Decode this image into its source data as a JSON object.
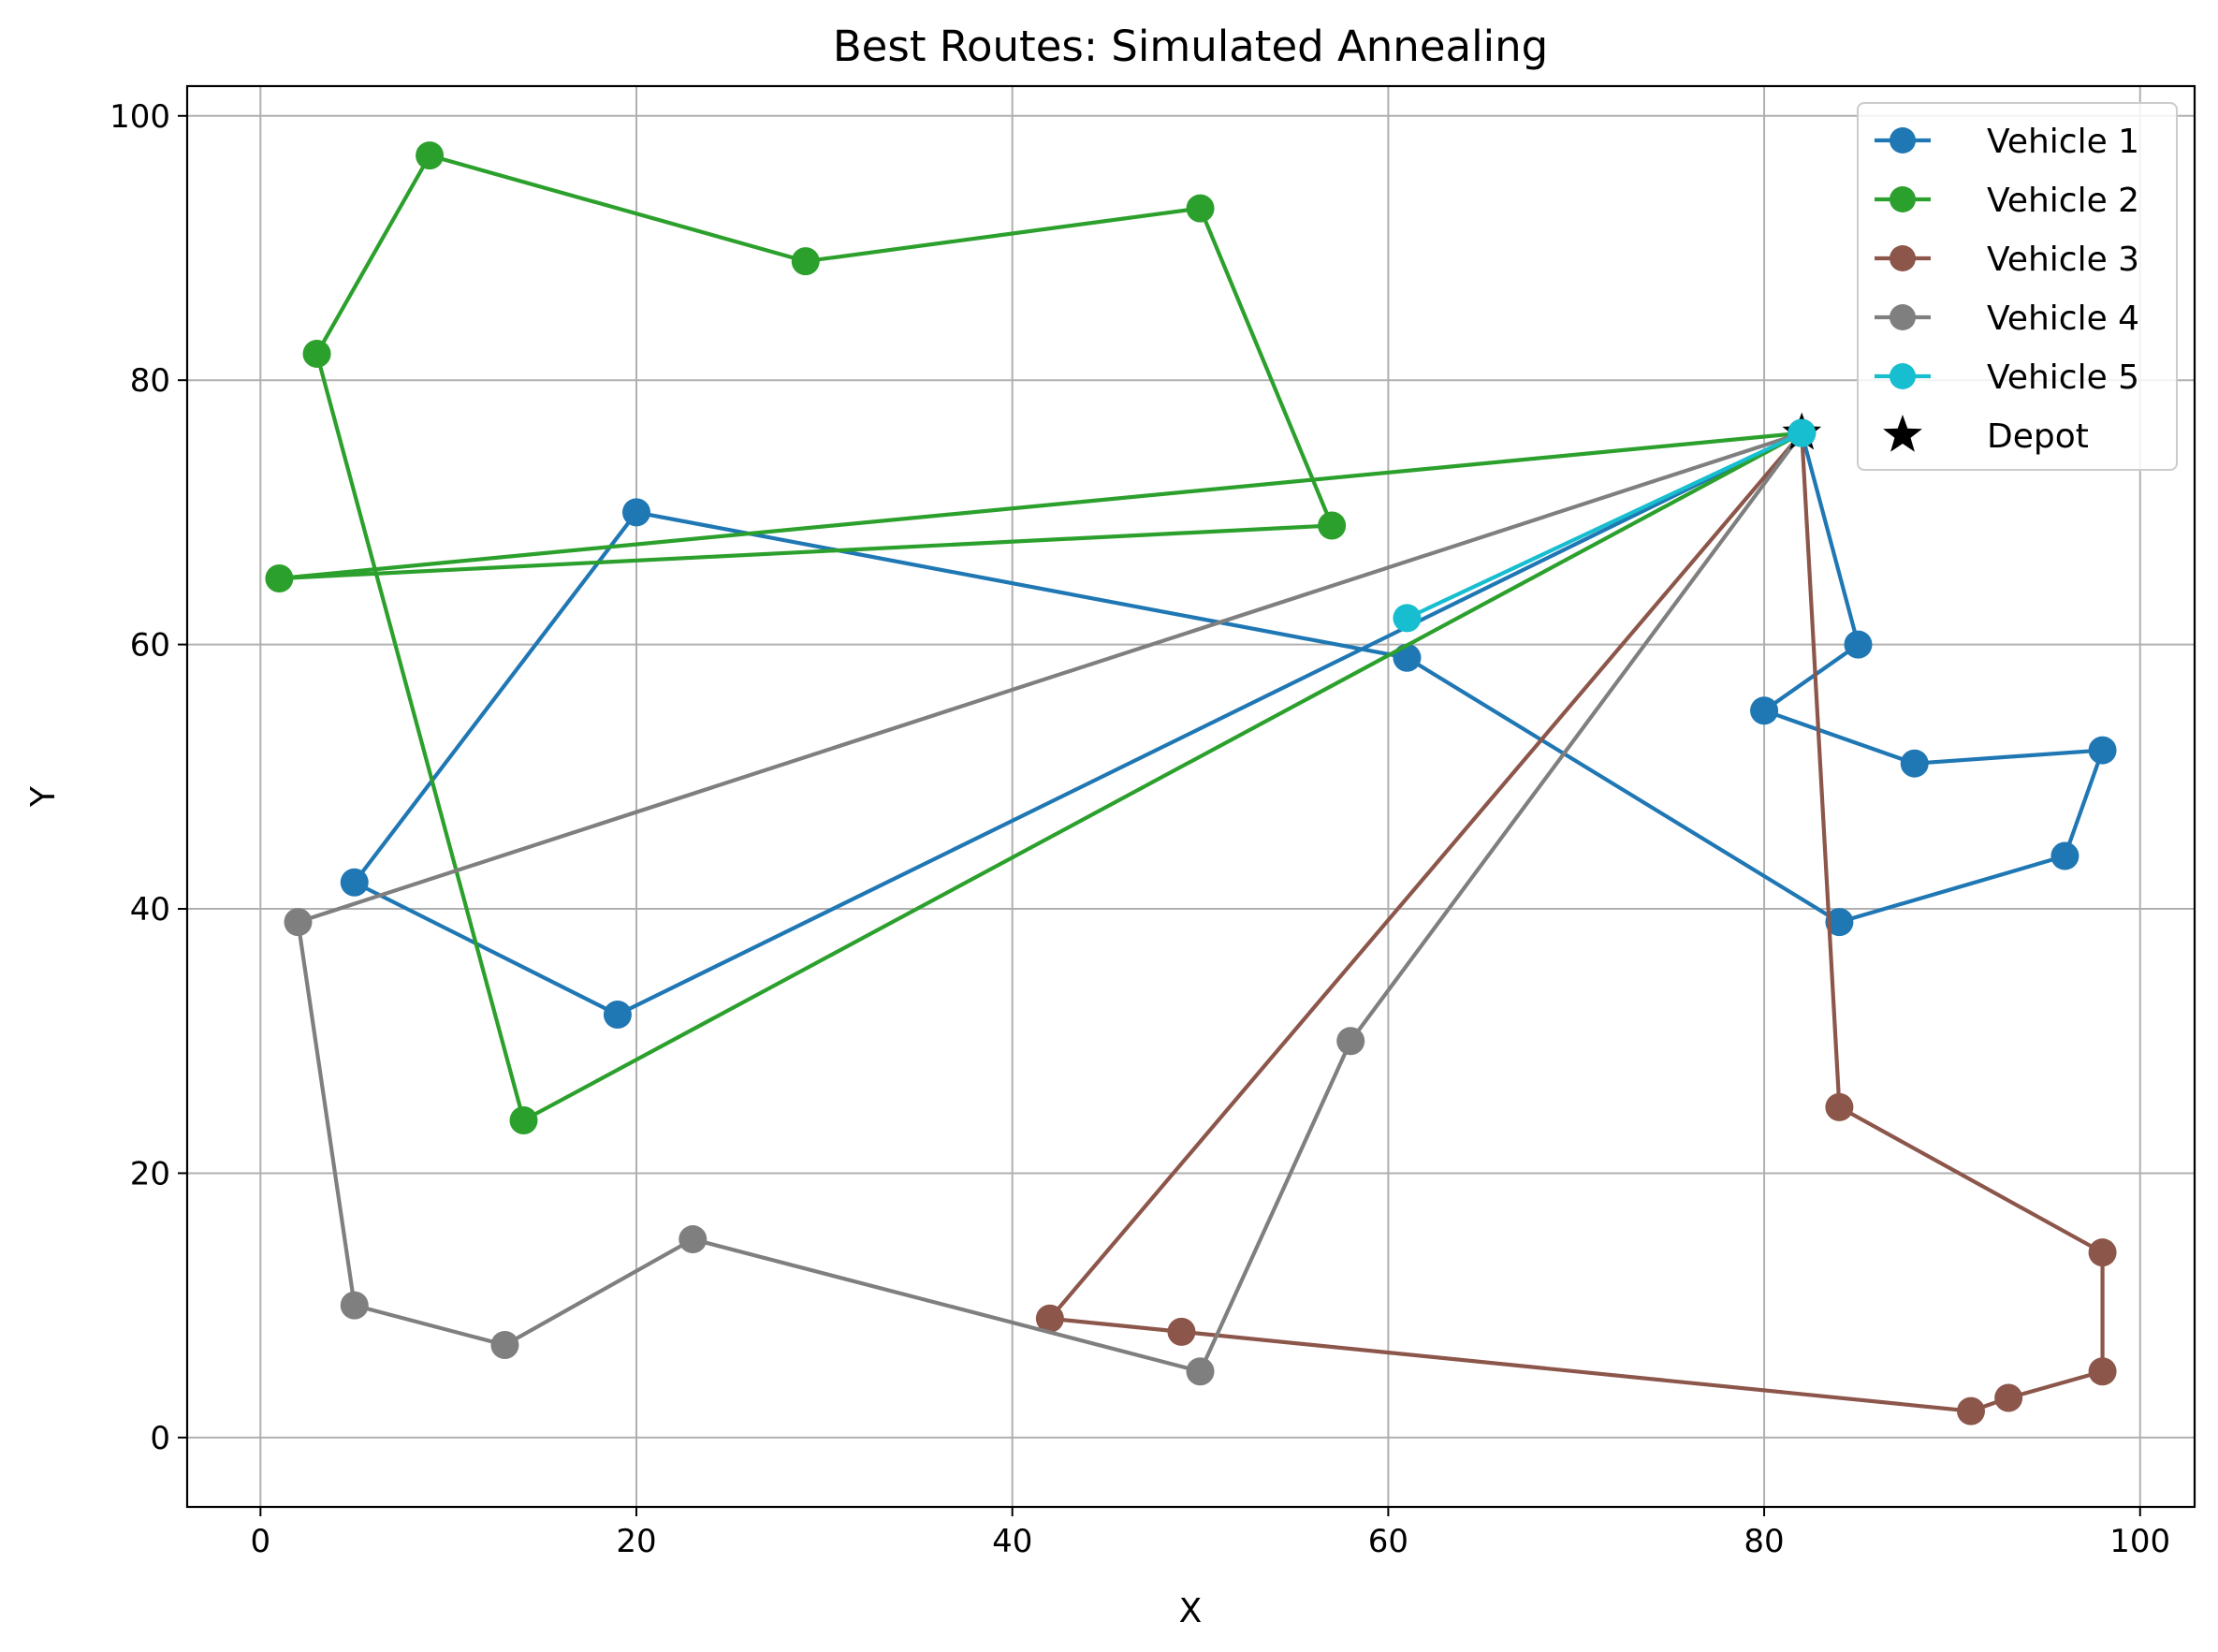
{
  "chart_data": {
    "type": "line",
    "title": "Best Routes: Simulated Annealing",
    "xlabel": "X",
    "ylabel": "Y",
    "xlim": [
      -3.9,
      102.9
    ],
    "ylim": [
      -5.25,
      102.25
    ],
    "xticks": [
      0,
      20,
      40,
      60,
      80,
      100
    ],
    "yticks": [
      0,
      20,
      40,
      60,
      80,
      100
    ],
    "grid": true,
    "legend_position": "top-right",
    "depot": {
      "name": "Depot",
      "x": 82,
      "y": 76,
      "color": "#000000"
    },
    "series": [
      {
        "name": "Vehicle 1",
        "color": "#1f77b4",
        "points": [
          [
            82,
            76
          ],
          [
            85,
            60
          ],
          [
            80,
            55
          ],
          [
            88,
            51
          ],
          [
            98,
            52
          ],
          [
            96,
            44
          ],
          [
            84,
            39
          ],
          [
            61,
            59
          ],
          [
            20,
            70
          ],
          [
            5,
            42
          ],
          [
            19,
            32
          ],
          [
            82,
            76
          ]
        ]
      },
      {
        "name": "Vehicle 2",
        "color": "#2ca02c",
        "points": [
          [
            82,
            76
          ],
          [
            1,
            65
          ],
          [
            57,
            69
          ],
          [
            50,
            93
          ],
          [
            29,
            89
          ],
          [
            9,
            97
          ],
          [
            3,
            82
          ],
          [
            14,
            24
          ],
          [
            82,
            76
          ]
        ]
      },
      {
        "name": "Vehicle 3",
        "color": "#8c564b",
        "points": [
          [
            82,
            76
          ],
          [
            84,
            25
          ],
          [
            98,
            14
          ],
          [
            98,
            5
          ],
          [
            93,
            3
          ],
          [
            91,
            2
          ],
          [
            49,
            8
          ],
          [
            42,
            9
          ],
          [
            82,
            76
          ]
        ]
      },
      {
        "name": "Vehicle 4",
        "color": "#7f7f7f",
        "points": [
          [
            82,
            76
          ],
          [
            58,
            30
          ],
          [
            50,
            5
          ],
          [
            23,
            15
          ],
          [
            13,
            7
          ],
          [
            5,
            10
          ],
          [
            2,
            39
          ],
          [
            82,
            76
          ]
        ]
      },
      {
        "name": "Vehicle 5",
        "color": "#17becf",
        "points": [
          [
            82,
            76
          ],
          [
            61,
            62
          ],
          [
            82,
            76
          ]
        ]
      }
    ]
  }
}
